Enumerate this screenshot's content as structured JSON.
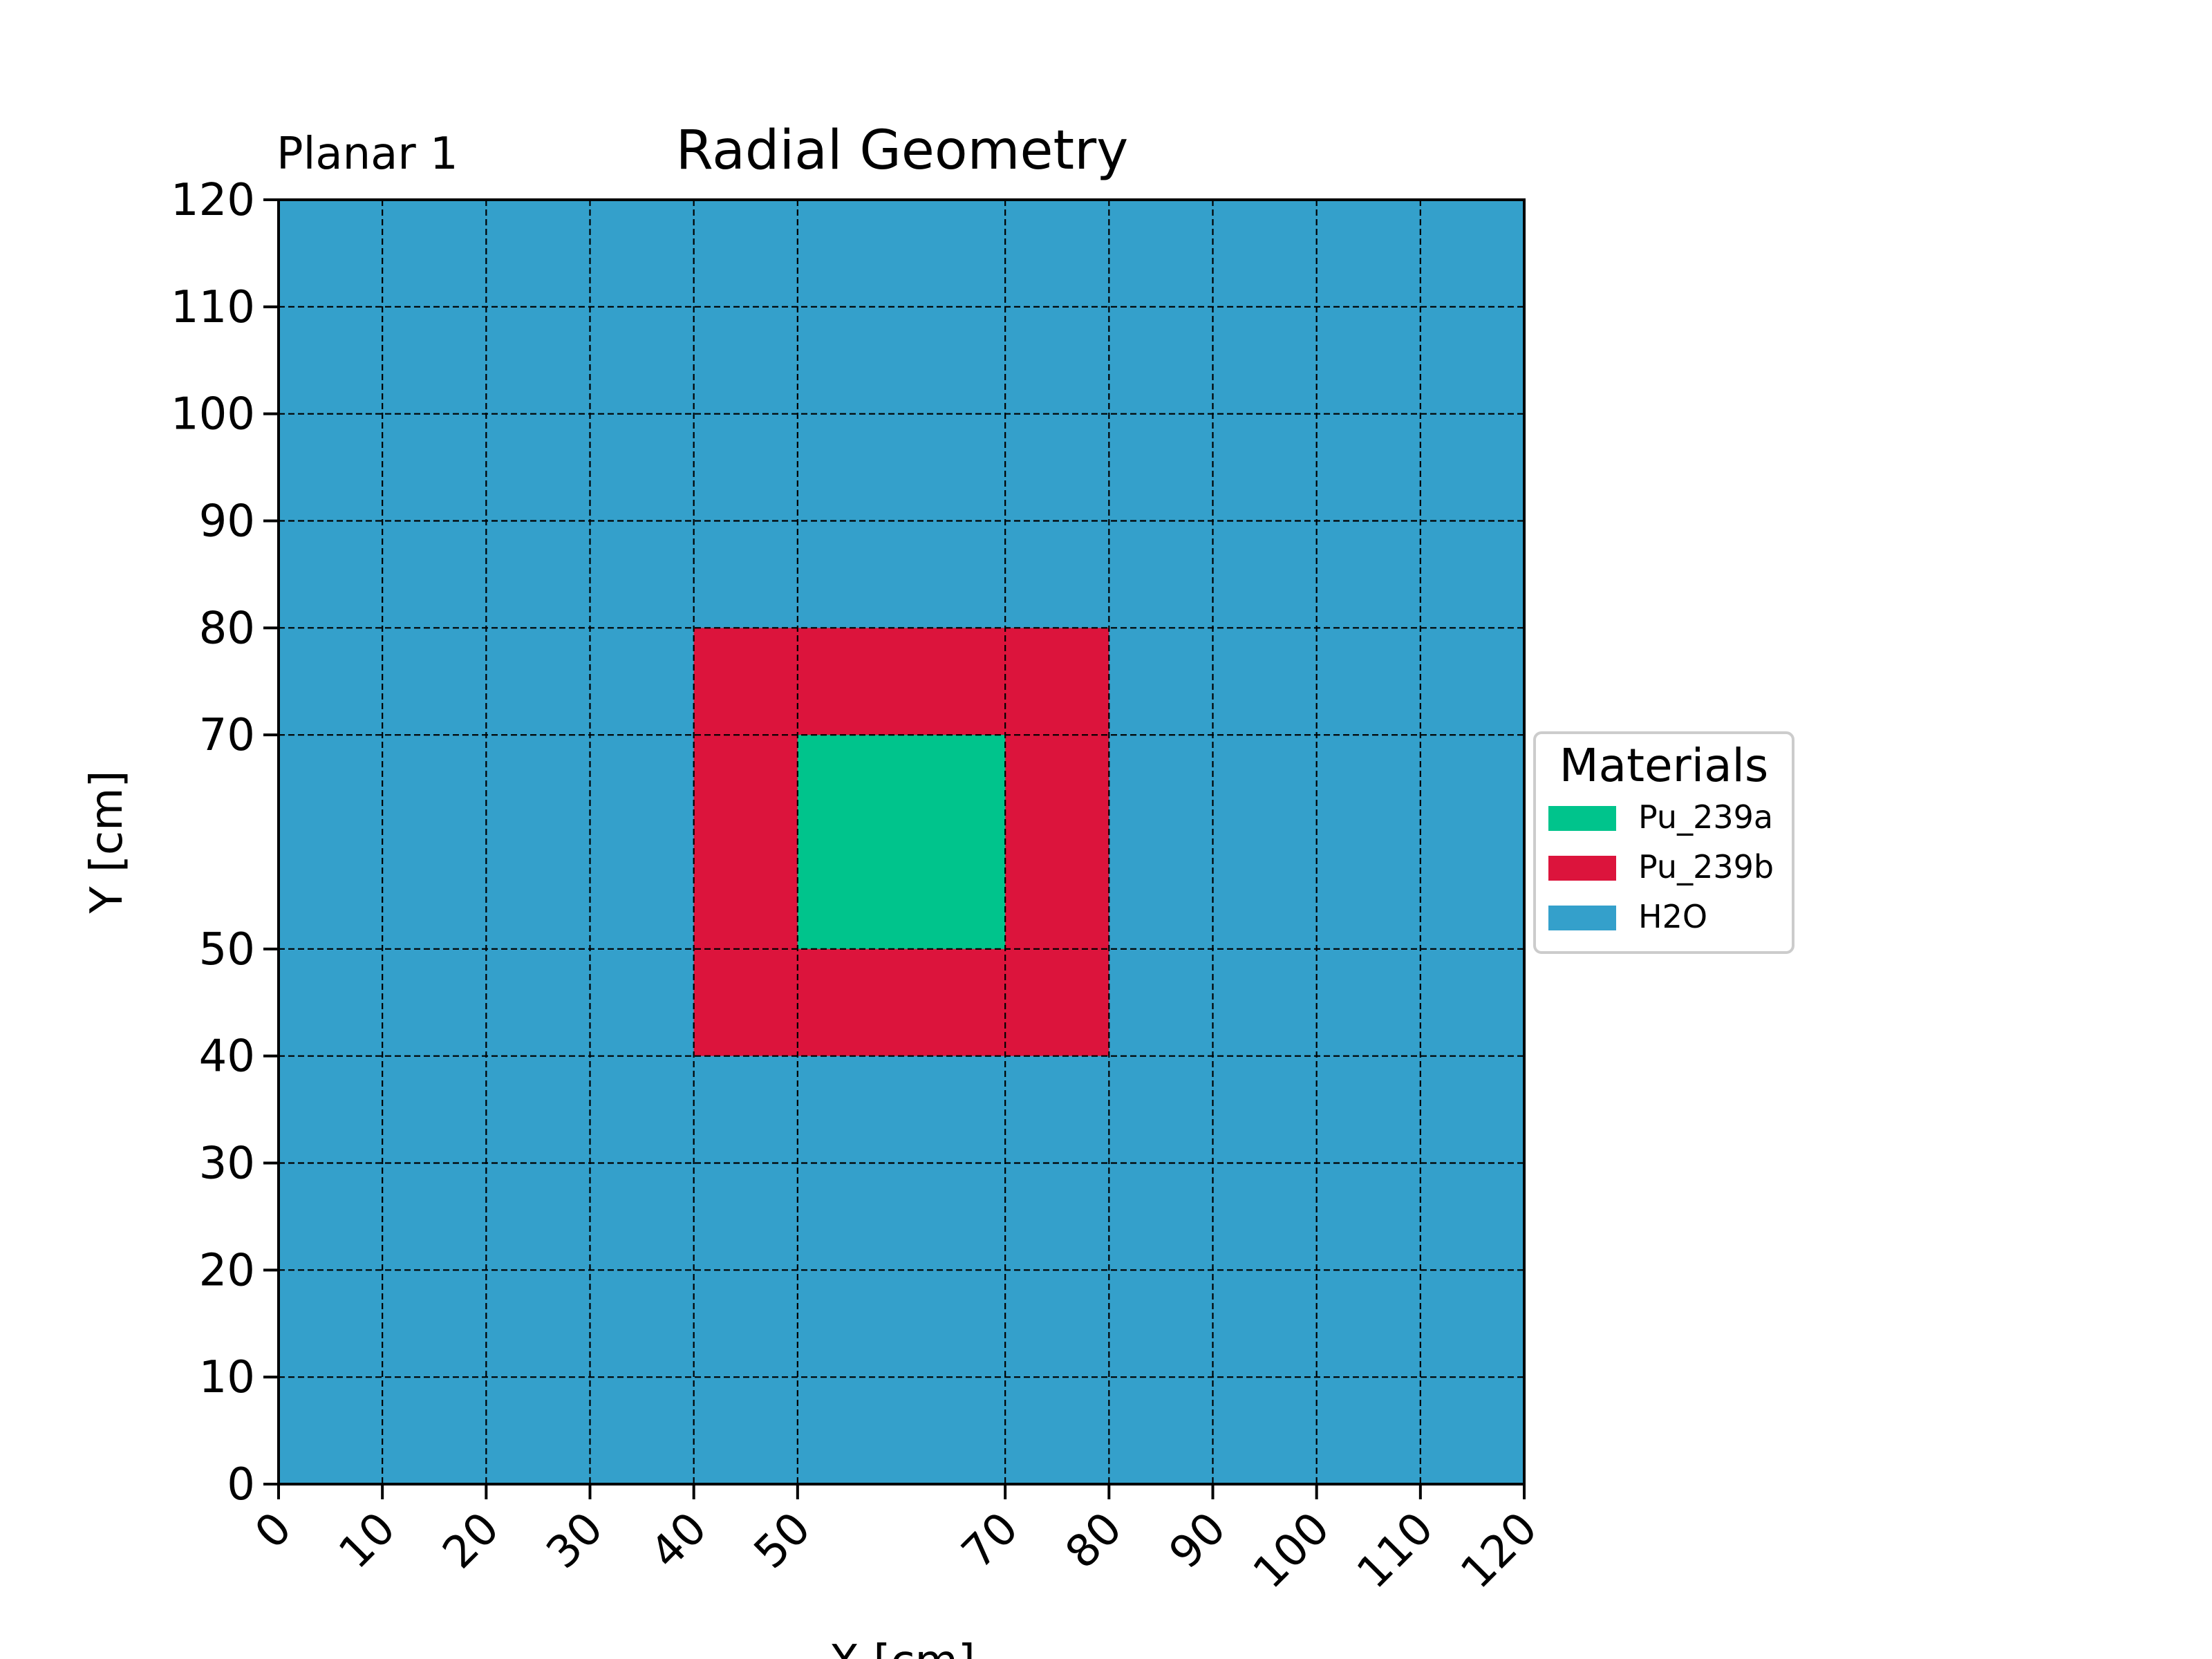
{
  "chart_data": {
    "type": "heatmap",
    "title": "Radial Geometry",
    "subtitle": "Planar 1",
    "xlabel": "X [cm]",
    "ylabel": "Y [cm]",
    "xlim": [
      0,
      120
    ],
    "ylim": [
      0,
      120
    ],
    "x_edges": [
      0,
      10,
      20,
      30,
      40,
      50,
      70,
      80,
      90,
      100,
      110,
      120
    ],
    "y_edges": [
      0,
      10,
      20,
      30,
      40,
      50,
      70,
      80,
      90,
      100,
      110,
      120
    ],
    "x_ticks": [
      "0",
      "10",
      "20",
      "30",
      "40",
      "50",
      "70",
      "80",
      "90",
      "100",
      "110",
      "120"
    ],
    "y_ticks": [
      "0",
      "10",
      "20",
      "30",
      "40",
      "50",
      "70",
      "80",
      "90",
      "100",
      "110",
      "120"
    ],
    "grid": true,
    "regions": [
      {
        "material": "H2O",
        "x": [
          0,
          120
        ],
        "y": [
          0,
          120
        ]
      },
      {
        "material": "Pu_239b",
        "x": [
          40,
          80
        ],
        "y": [
          40,
          80
        ]
      },
      {
        "material": "Pu_239a",
        "x": [
          50,
          70
        ],
        "y": [
          50,
          70
        ]
      }
    ],
    "legend": {
      "title": "Materials",
      "position": "right",
      "items": [
        {
          "label": "Pu_239a",
          "color": "#00c48c"
        },
        {
          "label": "Pu_239b",
          "color": "#dc143c"
        },
        {
          "label": "H2O",
          "color": "#34a0cb"
        }
      ]
    }
  }
}
